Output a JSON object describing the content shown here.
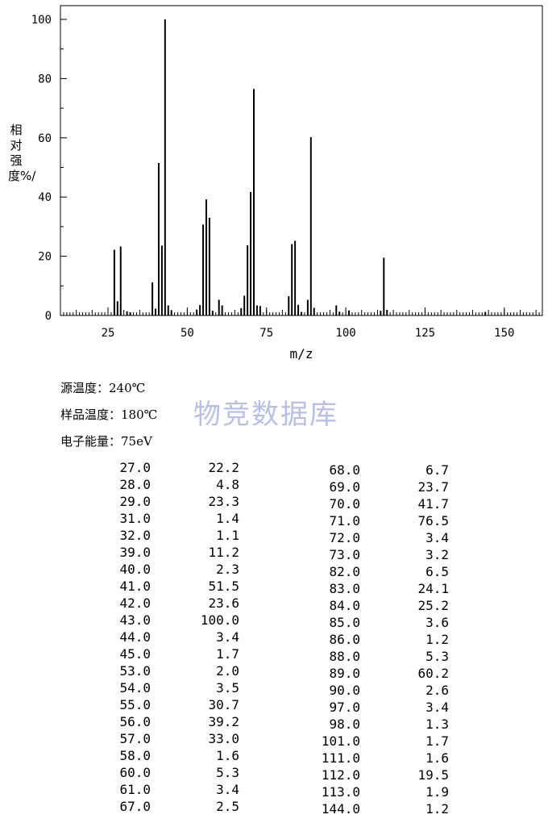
{
  "chart_data": {
    "type": "bar",
    "title": "",
    "xlabel": "m/z",
    "ylabel": "相对强度%/",
    "xlim": [
      10,
      162
    ],
    "ylim": [
      0,
      100
    ],
    "x_ticks": [
      "25",
      "50",
      "75",
      "100",
      "125",
      "150"
    ],
    "y_ticks": [
      "0",
      "20",
      "40",
      "60",
      "80",
      "100"
    ],
    "grid": false,
    "peaks": [
      {
        "mz": 27,
        "intensity": 22.2
      },
      {
        "mz": 28,
        "intensity": 4.8
      },
      {
        "mz": 29,
        "intensity": 23.3
      },
      {
        "mz": 31,
        "intensity": 1.4
      },
      {
        "mz": 32,
        "intensity": 1.1
      },
      {
        "mz": 39,
        "intensity": 11.2
      },
      {
        "mz": 40,
        "intensity": 2.3
      },
      {
        "mz": 41,
        "intensity": 51.5
      },
      {
        "mz": 42,
        "intensity": 23.6
      },
      {
        "mz": 43,
        "intensity": 100.0
      },
      {
        "mz": 44,
        "intensity": 3.4
      },
      {
        "mz": 45,
        "intensity": 1.7
      },
      {
        "mz": 53,
        "intensity": 2.0
      },
      {
        "mz": 54,
        "intensity": 3.5
      },
      {
        "mz": 55,
        "intensity": 30.7
      },
      {
        "mz": 56,
        "intensity": 39.2
      },
      {
        "mz": 57,
        "intensity": 33.0
      },
      {
        "mz": 58,
        "intensity": 1.6
      },
      {
        "mz": 60,
        "intensity": 5.3
      },
      {
        "mz": 61,
        "intensity": 3.4
      },
      {
        "mz": 67,
        "intensity": 2.5
      },
      {
        "mz": 68,
        "intensity": 6.7
      },
      {
        "mz": 69,
        "intensity": 23.7
      },
      {
        "mz": 70,
        "intensity": 41.7
      },
      {
        "mz": 71,
        "intensity": 76.5
      },
      {
        "mz": 72,
        "intensity": 3.4
      },
      {
        "mz": 73,
        "intensity": 3.2
      },
      {
        "mz": 82,
        "intensity": 6.5
      },
      {
        "mz": 83,
        "intensity": 24.1
      },
      {
        "mz": 84,
        "intensity": 25.2
      },
      {
        "mz": 85,
        "intensity": 3.6
      },
      {
        "mz": 86,
        "intensity": 1.2
      },
      {
        "mz": 88,
        "intensity": 5.3
      },
      {
        "mz": 89,
        "intensity": 60.2
      },
      {
        "mz": 90,
        "intensity": 2.6
      },
      {
        "mz": 97,
        "intensity": 3.4
      },
      {
        "mz": 98,
        "intensity": 1.3
      },
      {
        "mz": 101,
        "intensity": 1.7
      },
      {
        "mz": 111,
        "intensity": 1.6
      },
      {
        "mz": 112,
        "intensity": 19.5
      },
      {
        "mz": 113,
        "intensity": 1.9
      },
      {
        "mz": 144,
        "intensity": 1.2
      }
    ]
  },
  "conditions": {
    "source_temp": "源温度：240℃",
    "sample_temp": "样品温度：180℃",
    "electron_energy": "电子能量：75eV"
  },
  "watermark": "物竞数据库",
  "table_left": [
    {
      "mz": "27.0",
      "intensity": "22.2"
    },
    {
      "mz": "28.0",
      "intensity": "4.8"
    },
    {
      "mz": "29.0",
      "intensity": "23.3"
    },
    {
      "mz": "31.0",
      "intensity": "1.4"
    },
    {
      "mz": "32.0",
      "intensity": "1.1"
    },
    {
      "mz": "39.0",
      "intensity": "11.2"
    },
    {
      "mz": "40.0",
      "intensity": "2.3"
    },
    {
      "mz": "41.0",
      "intensity": "51.5"
    },
    {
      "mz": "42.0",
      "intensity": "23.6"
    },
    {
      "mz": "43.0",
      "intensity": "100.0"
    },
    {
      "mz": "44.0",
      "intensity": "3.4"
    },
    {
      "mz": "45.0",
      "intensity": "1.7"
    },
    {
      "mz": "53.0",
      "intensity": "2.0"
    },
    {
      "mz": "54.0",
      "intensity": "3.5"
    },
    {
      "mz": "55.0",
      "intensity": "30.7"
    },
    {
      "mz": "56.0",
      "intensity": "39.2"
    },
    {
      "mz": "57.0",
      "intensity": "33.0"
    },
    {
      "mz": "58.0",
      "intensity": "1.6"
    },
    {
      "mz": "60.0",
      "intensity": "5.3"
    },
    {
      "mz": "61.0",
      "intensity": "3.4"
    },
    {
      "mz": "67.0",
      "intensity": "2.5"
    }
  ],
  "table_right": [
    {
      "mz": "68.0",
      "intensity": "6.7"
    },
    {
      "mz": "69.0",
      "intensity": "23.7"
    },
    {
      "mz": "70.0",
      "intensity": "41.7"
    },
    {
      "mz": "71.0",
      "intensity": "76.5"
    },
    {
      "mz": "72.0",
      "intensity": "3.4"
    },
    {
      "mz": "73.0",
      "intensity": "3.2"
    },
    {
      "mz": "82.0",
      "intensity": "6.5"
    },
    {
      "mz": "83.0",
      "intensity": "24.1"
    },
    {
      "mz": "84.0",
      "intensity": "25.2"
    },
    {
      "mz": "85.0",
      "intensity": "3.6"
    },
    {
      "mz": "86.0",
      "intensity": "1.2"
    },
    {
      "mz": "88.0",
      "intensity": "5.3"
    },
    {
      "mz": "89.0",
      "intensity": "60.2"
    },
    {
      "mz": "90.0",
      "intensity": "2.6"
    },
    {
      "mz": "97.0",
      "intensity": "3.4"
    },
    {
      "mz": "98.0",
      "intensity": "1.3"
    },
    {
      "mz": "101.0",
      "intensity": "1.7"
    },
    {
      "mz": "111.0",
      "intensity": "1.6"
    },
    {
      "mz": "112.0",
      "intensity": "19.5"
    },
    {
      "mz": "113.0",
      "intensity": "1.9"
    },
    {
      "mz": "144.0",
      "intensity": "1.2"
    }
  ]
}
